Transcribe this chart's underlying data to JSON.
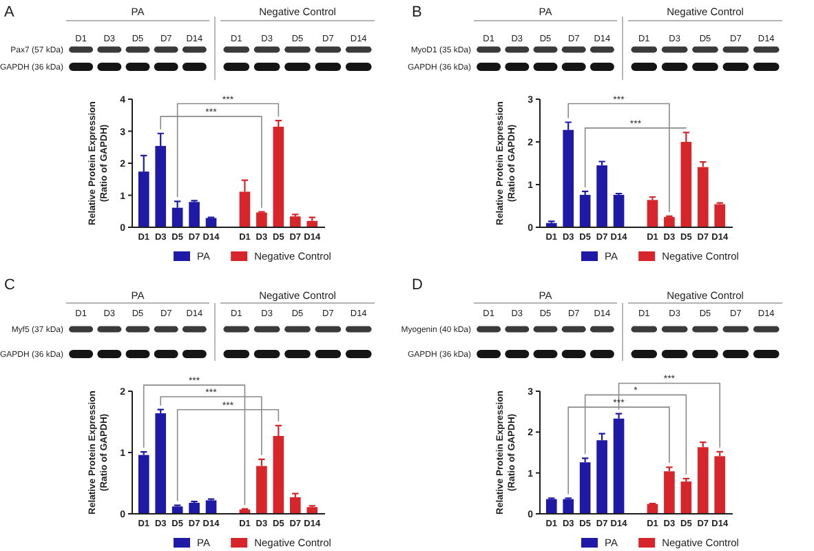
{
  "chart_data": [
    {
      "type": "bar",
      "categories": [
        "D1",
        "D3",
        "D5",
        "D7",
        "D14",
        null,
        "D1",
        "D3",
        "D5",
        "D7",
        "D14"
      ],
      "series": [
        {
          "name": "PA",
          "color": "#1f1aa6",
          "values": [
            1.74,
            2.54,
            0.61,
            0.79,
            0.29,
            null,
            null,
            null,
            null,
            null,
            null
          ],
          "errors": [
            0.5,
            0.39,
            0.2,
            0.04,
            0.02,
            null,
            null,
            null,
            null,
            null,
            null
          ]
        },
        {
          "name": "Negative Control",
          "color": "#d7262b",
          "values": [
            null,
            null,
            null,
            null,
            null,
            null,
            1.11,
            0.46,
            3.14,
            0.34,
            0.2
          ],
          "errors": [
            null,
            null,
            null,
            null,
            null,
            null,
            0.36,
            0.02,
            0.19,
            0.06,
            0.11
          ]
        }
      ],
      "ylabel": "Relative Protein Expression\n(Ratio of GAPDH)",
      "ylim": [
        0,
        4
      ],
      "yticks": [
        0,
        1,
        2,
        3,
        4
      ],
      "legend": "bottom",
      "annotations": [
        "A",
        "Pax7 (57 kDa)",
        "GAPDH (36 kDa)",
        "***",
        "***"
      ]
    },
    {
      "type": "bar",
      "categories": [
        "D1",
        "D3",
        "D5",
        "D7",
        "D14",
        null,
        "D1",
        "D3",
        "D5",
        "D7",
        "D14"
      ],
      "series": [
        {
          "name": "PA",
          "color": "#1f1aa6",
          "values": [
            0.1,
            2.28,
            0.76,
            1.45,
            0.76,
            null,
            null,
            null,
            null,
            null,
            null
          ],
          "errors": [
            0.04,
            0.18,
            0.08,
            0.09,
            0.03,
            null,
            null,
            null,
            null,
            null,
            null
          ]
        },
        {
          "name": "Negative Control",
          "color": "#d7262b",
          "values": [
            null,
            null,
            null,
            null,
            null,
            null,
            0.64,
            0.24,
            2.0,
            1.41,
            0.54
          ],
          "errors": [
            null,
            null,
            null,
            null,
            null,
            null,
            0.07,
            0.02,
            0.22,
            0.12,
            0.03
          ]
        }
      ],
      "ylabel": "Relative Protein Expression\n(Ratio of GAPDH)",
      "ylim": [
        0,
        3
      ],
      "yticks": [
        0,
        1,
        2,
        3
      ],
      "legend": "bottom",
      "annotations": [
        "B",
        "MyoD1 (35 kDa)",
        "GAPDH (36 kDa)",
        "***",
        "***"
      ]
    },
    {
      "type": "bar",
      "categories": [
        "D1",
        "D3",
        "D5",
        "D7",
        "D14",
        null,
        "D1",
        "D3",
        "D5",
        "D7",
        "D14"
      ],
      "series": [
        {
          "name": "PA",
          "color": "#1f1aa6",
          "values": [
            0.96,
            1.64,
            0.12,
            0.18,
            0.22,
            null,
            null,
            null,
            null,
            null,
            null
          ],
          "errors": [
            0.05,
            0.06,
            0.02,
            0.02,
            0.02,
            null,
            null,
            null,
            null,
            null,
            null
          ]
        },
        {
          "name": "Negative Control",
          "color": "#d7262b",
          "values": [
            null,
            null,
            null,
            null,
            null,
            null,
            0.07,
            0.78,
            1.27,
            0.27,
            0.11
          ],
          "errors": [
            null,
            null,
            null,
            null,
            null,
            null,
            0.01,
            0.11,
            0.17,
            0.06,
            0.02
          ]
        }
      ],
      "ylabel": "Relative Protein Expression\n(Ratio of GAPDH)",
      "ylim": [
        0,
        2
      ],
      "yticks": [
        0,
        1,
        2
      ],
      "legend": "bottom",
      "annotations": [
        "C",
        "Myf5 (37 kDa)",
        "GAPDH (36 kDa)",
        "***",
        "***",
        "***"
      ]
    },
    {
      "type": "bar",
      "categories": [
        "D1",
        "D3",
        "D5",
        "D7",
        "D14",
        null,
        "D1",
        "D3",
        "D5",
        "D7",
        "D14"
      ],
      "series": [
        {
          "name": "PA",
          "color": "#1f1aa6",
          "values": [
            0.36,
            0.36,
            1.26,
            1.8,
            2.33,
            null,
            null,
            null,
            null,
            null,
            null
          ],
          "errors": [
            0.02,
            0.02,
            0.1,
            0.16,
            0.12,
            null,
            null,
            null,
            null,
            null,
            null
          ]
        },
        {
          "name": "Negative Control",
          "color": "#d7262b",
          "values": [
            null,
            null,
            null,
            null,
            null,
            null,
            0.24,
            1.04,
            0.79,
            1.63,
            1.41
          ],
          "errors": [
            null,
            null,
            null,
            null,
            null,
            null,
            0.01,
            0.1,
            0.07,
            0.12,
            0.11
          ]
        }
      ],
      "ylabel": "Relative Protein Expression\n(Ratio of GAPDH)",
      "ylim": [
        0,
        3
      ],
      "yticks": [
        0,
        1,
        2,
        3
      ],
      "legend": "bottom",
      "annotations": [
        "D",
        "Myogenin (40 kDa)",
        "GAPDH (36 kDa)",
        "***",
        "*",
        "***"
      ]
    }
  ]
}
